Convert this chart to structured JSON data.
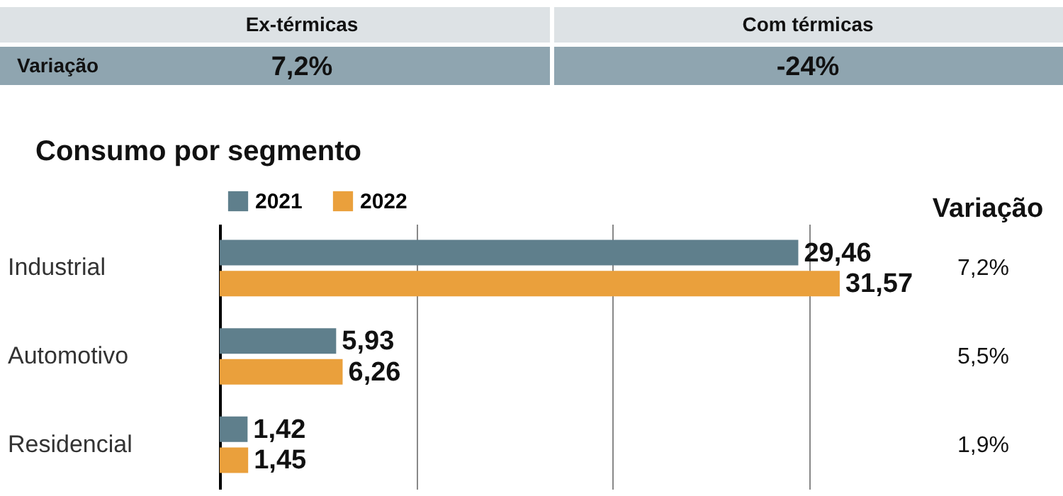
{
  "chart_data": {
    "type": "bar",
    "orientation": "horizontal",
    "title": "Consumo por segmento",
    "categories": [
      "Industrial",
      "Automotivo",
      "Residencial"
    ],
    "series": [
      {
        "name": "2021",
        "color": "#5f7f8c",
        "values": [
          29.46,
          5.93,
          1.42
        ],
        "value_labels": [
          "29,46",
          "5,93",
          "1,42"
        ]
      },
      {
        "name": "2022",
        "color": "#eaa03c",
        "values": [
          31.57,
          6.26,
          1.45
        ],
        "value_labels": [
          "31,57",
          "6,26",
          "1,45"
        ]
      }
    ],
    "grid": "x",
    "tick_labels": "y",
    "legend": "top left",
    "annotations": [
      "Ex-térmicas",
      "Com térmicas",
      "Variação",
      "7,2%",
      "-24%",
      "Variação",
      "7,2%",
      "5,5%",
      "1,9%"
    ]
  }
}
